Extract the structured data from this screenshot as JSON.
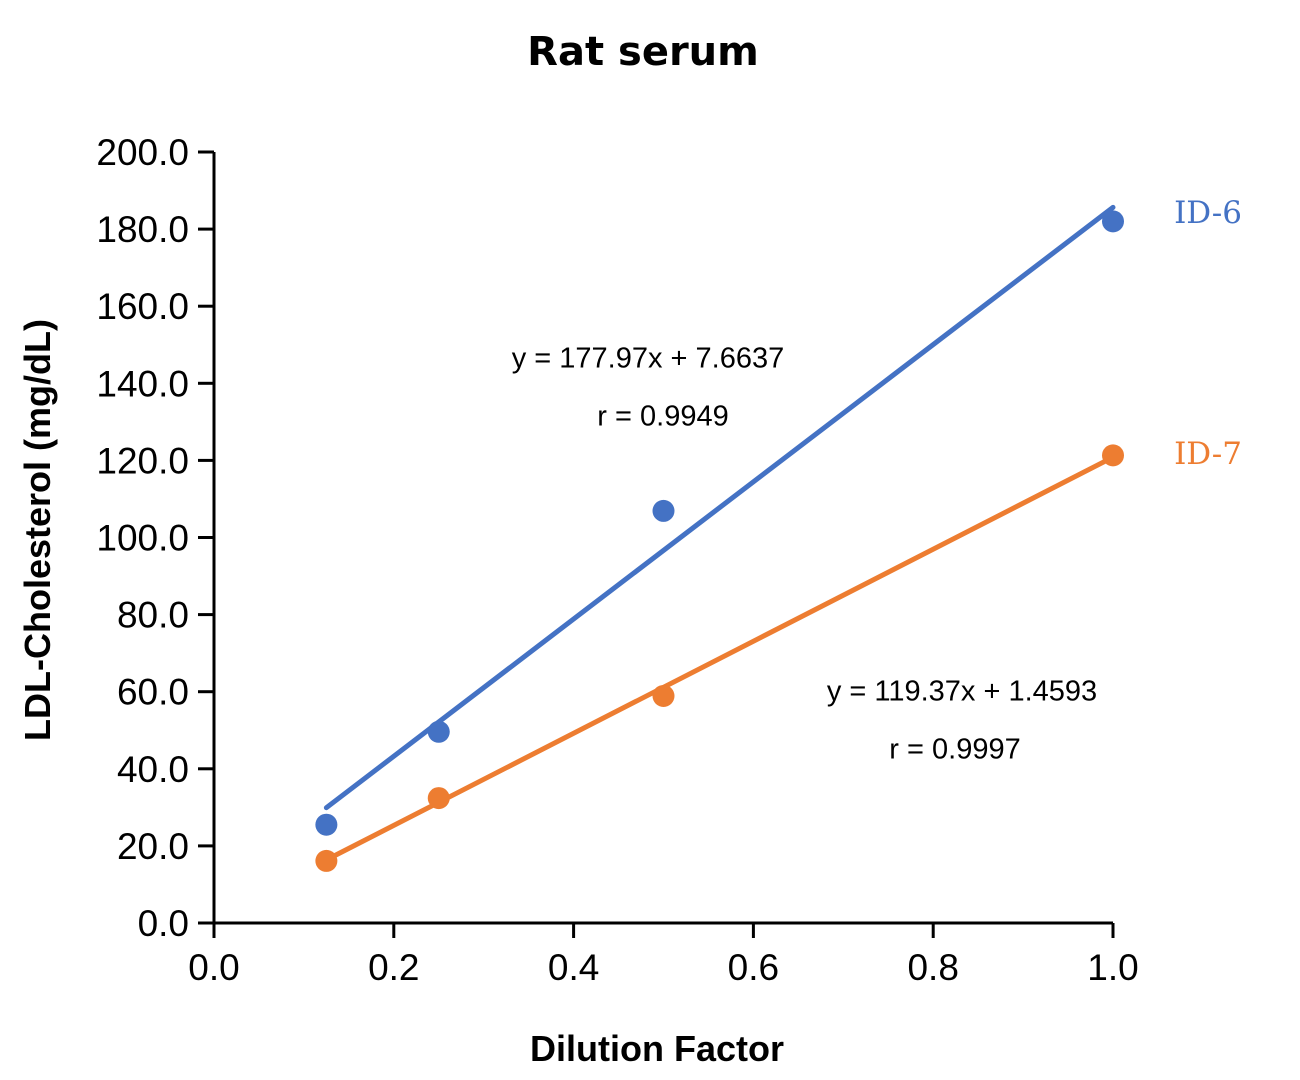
{
  "chart_data": {
    "type": "scatter",
    "title": "Rat serum",
    "xlabel": "Dilution Factor",
    "ylabel": "LDL-Cholesterol (mg/dL)",
    "xlim": [
      0.0,
      1.0
    ],
    "ylim": [
      0.0,
      200.0
    ],
    "grid": false,
    "x_ticks": [
      0.0,
      0.2,
      0.4,
      0.6,
      0.8,
      1.0
    ],
    "x_tick_labels": [
      "0.0",
      "0.2",
      "0.4",
      "0.6",
      "0.8",
      "1.0"
    ],
    "y_ticks": [
      0,
      20,
      40,
      60,
      80,
      100,
      120,
      140,
      160,
      180,
      200
    ],
    "y_tick_labels": [
      "0.0",
      "20.0",
      "40.0",
      "60.0",
      "80.0",
      "100.0",
      "120.0",
      "140.0",
      "160.0",
      "180.0",
      "200.0"
    ],
    "axis_color": "#000000",
    "legend_position": "right-of-last-point",
    "series": [
      {
        "name": "ID-6",
        "color": "#4472C4",
        "x": [
          0.125,
          0.25,
          0.5,
          1.0
        ],
        "y": [
          25.5,
          49.6,
          106.9,
          182.0
        ],
        "trendline": {
          "slope": 177.97,
          "intercept": 7.6637,
          "x_start": 0.125,
          "x_end": 1.0,
          "equation_label": "y = 177.97x + 7.6637",
          "r_label": "r = 0.9949"
        }
      },
      {
        "name": "ID-7",
        "color": "#ED7D31",
        "x": [
          0.125,
          0.25,
          0.5,
          1.0
        ],
        "y": [
          16.1,
          32.4,
          58.9,
          121.3
        ],
        "trendline": {
          "slope": 119.37,
          "intercept": 1.4593,
          "x_start": 0.125,
          "x_end": 1.0,
          "equation_label": "y = 119.37x + 1.4593",
          "r_label": "r = 0.9997"
        }
      }
    ]
  }
}
